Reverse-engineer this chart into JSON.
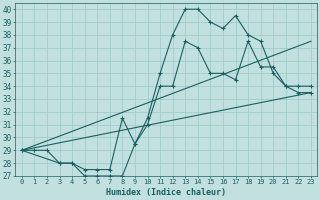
{
  "xlabel": "Humidex (Indice chaleur)",
  "xlim": [
    -0.5,
    23.5
  ],
  "ylim": [
    27,
    40.5
  ],
  "yticks": [
    27,
    28,
    29,
    30,
    31,
    32,
    33,
    34,
    35,
    36,
    37,
    38,
    39,
    40
  ],
  "xticks": [
    0,
    1,
    2,
    3,
    4,
    5,
    6,
    7,
    8,
    9,
    10,
    11,
    12,
    13,
    14,
    15,
    16,
    17,
    18,
    19,
    20,
    21,
    22,
    23
  ],
  "bg_color": "#c2e0e0",
  "grid_color": "#9ec8c8",
  "line_color": "#1a5f5f",
  "line1_x": [
    0,
    1,
    2,
    3,
    4,
    5,
    6,
    7,
    8,
    9,
    10,
    11,
    12,
    13,
    14,
    15,
    16,
    17,
    18,
    19,
    20,
    21,
    22,
    23
  ],
  "line1_y": [
    29,
    29,
    29,
    28,
    28,
    27,
    27,
    27,
    27,
    29.5,
    31.5,
    35,
    38,
    40,
    40,
    39,
    38.5,
    39.5,
    38,
    37.5,
    35,
    34,
    33.5,
    33.5
  ],
  "line2_x": [
    0,
    3,
    4,
    5,
    6,
    7,
    8,
    9,
    10,
    11,
    12,
    13,
    14,
    15,
    16,
    17,
    18,
    19,
    20,
    21,
    22,
    23
  ],
  "line2_y": [
    29,
    28,
    28,
    27.5,
    27.5,
    27.5,
    31.5,
    29.5,
    31,
    34,
    34,
    37.5,
    37,
    35,
    35,
    34.5,
    37.5,
    35.5,
    35.5,
    34,
    34,
    34
  ],
  "line3_x": [
    0,
    23
  ],
  "line3_y": [
    29,
    33.5
  ],
  "line4_x": [
    0,
    23
  ],
  "line4_y": [
    29,
    37.5
  ]
}
